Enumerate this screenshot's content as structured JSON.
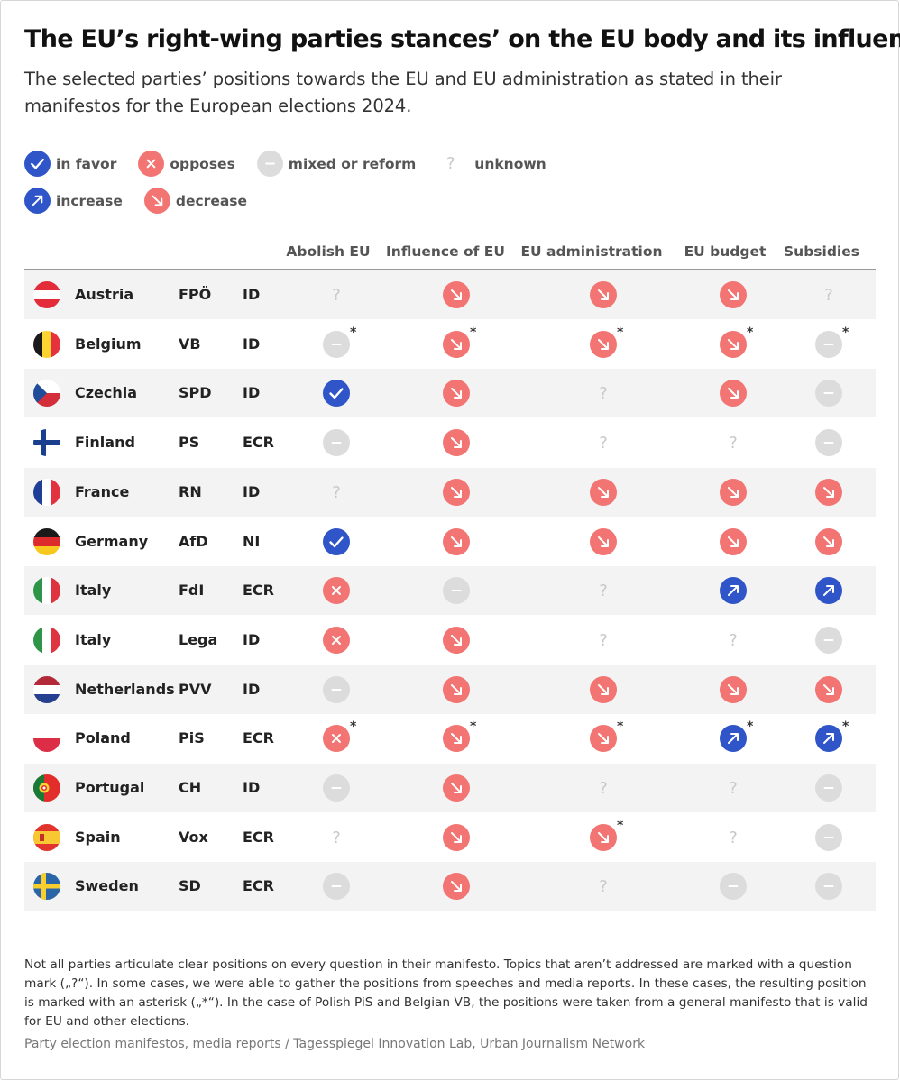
{
  "title": "The EU’s right-wing parties stances’ on the EU body and its influence",
  "subtitle": "The selected parties’ positions towards the EU and EU administration as stated in their manifestos for the European elections 2024.",
  "legend": {
    "in_favor": "in favor",
    "opposes": "opposes",
    "mixed": "mixed or reform",
    "unknown": "unknown",
    "increase": "increase",
    "decrease": "decrease"
  },
  "colors": {
    "blue": "#2f55c8",
    "red": "#f27573",
    "gray": "#dcdcdc",
    "question": "#c8c8c8"
  },
  "chart_data": {
    "type": "table",
    "columns": [
      "Abolish EU",
      "Influence of EU",
      "EU administration",
      "EU budget",
      "Subsidies"
    ],
    "rows": [
      {
        "country": "Austria",
        "party": "FPÖ",
        "group": "ID",
        "flag": "austria",
        "values": [
          "unknown",
          "decrease",
          "decrease",
          "decrease",
          "unknown"
        ],
        "asterisk": [
          false,
          false,
          false,
          false,
          false
        ]
      },
      {
        "country": "Belgium",
        "party": "VB",
        "group": "ID",
        "flag": "belgium",
        "values": [
          "mixed",
          "decrease",
          "decrease",
          "decrease",
          "mixed"
        ],
        "asterisk": [
          true,
          true,
          true,
          true,
          true
        ]
      },
      {
        "country": "Czechia",
        "party": "SPD",
        "group": "ID",
        "flag": "czechia",
        "values": [
          "favor",
          "decrease",
          "unknown",
          "decrease",
          "mixed"
        ],
        "asterisk": [
          false,
          false,
          false,
          false,
          false
        ]
      },
      {
        "country": "Finland",
        "party": "PS",
        "group": "ECR",
        "flag": "finland",
        "values": [
          "mixed",
          "decrease",
          "unknown",
          "unknown",
          "mixed"
        ],
        "asterisk": [
          false,
          false,
          false,
          false,
          false
        ]
      },
      {
        "country": "France",
        "party": "RN",
        "group": "ID",
        "flag": "france",
        "values": [
          "unknown",
          "decrease",
          "decrease",
          "decrease",
          "decrease"
        ],
        "asterisk": [
          false,
          false,
          false,
          false,
          false
        ]
      },
      {
        "country": "Germany",
        "party": "AfD",
        "group": "NI",
        "flag": "germany",
        "values": [
          "favor",
          "decrease",
          "decrease",
          "decrease",
          "decrease"
        ],
        "asterisk": [
          false,
          false,
          false,
          false,
          false
        ]
      },
      {
        "country": "Italy",
        "party": "FdI",
        "group": "ECR",
        "flag": "italy",
        "values": [
          "opposes",
          "mixed",
          "unknown",
          "increase",
          "increase"
        ],
        "asterisk": [
          false,
          false,
          false,
          false,
          false
        ]
      },
      {
        "country": "Italy",
        "party": "Lega",
        "group": "ID",
        "flag": "italy",
        "values": [
          "opposes",
          "decrease",
          "unknown",
          "unknown",
          "mixed"
        ],
        "asterisk": [
          false,
          false,
          false,
          false,
          false
        ]
      },
      {
        "country": "Netherlands",
        "party": "PVV",
        "group": "ID",
        "flag": "netherlands",
        "values": [
          "mixed",
          "decrease",
          "decrease",
          "decrease",
          "decrease"
        ],
        "asterisk": [
          false,
          false,
          false,
          false,
          false
        ]
      },
      {
        "country": "Poland",
        "party": "PiS",
        "group": "ECR",
        "flag": "poland",
        "values": [
          "opposes",
          "decrease",
          "decrease",
          "increase",
          "increase"
        ],
        "asterisk": [
          true,
          true,
          true,
          true,
          true
        ]
      },
      {
        "country": "Portugal",
        "party": "CH",
        "group": "ID",
        "flag": "portugal",
        "values": [
          "mixed",
          "decrease",
          "unknown",
          "unknown",
          "mixed"
        ],
        "asterisk": [
          false,
          false,
          false,
          false,
          false
        ]
      },
      {
        "country": "Spain",
        "party": "Vox",
        "group": "ECR",
        "flag": "spain",
        "values": [
          "unknown",
          "decrease",
          "decrease",
          "unknown",
          "mixed"
        ],
        "asterisk": [
          false,
          false,
          true,
          false,
          false
        ]
      },
      {
        "country": "Sweden",
        "party": "SD",
        "group": "ECR",
        "flag": "sweden",
        "values": [
          "mixed",
          "decrease",
          "unknown",
          "mixed",
          "mixed"
        ],
        "asterisk": [
          false,
          false,
          false,
          false,
          false
        ]
      }
    ]
  },
  "note": "Not all parties articulate clear positions on every question in their manifesto. Topics that aren’t addressed are marked with a question mark („?“). In some cases, we were able to gather the positions from speeches and media reports. In these cases, the resulting position is marked with an asterisk („*“). In the case of Polish PiS and Belgian VB, the positions were taken from a general manifesto that is valid for EU and other elections.",
  "source": {
    "prefix": "Party election manifestos, media reports / ",
    "link1": "Tagesspiegel Innovation Lab",
    "separator": ", ",
    "link2": "Urban Journalism Network"
  }
}
